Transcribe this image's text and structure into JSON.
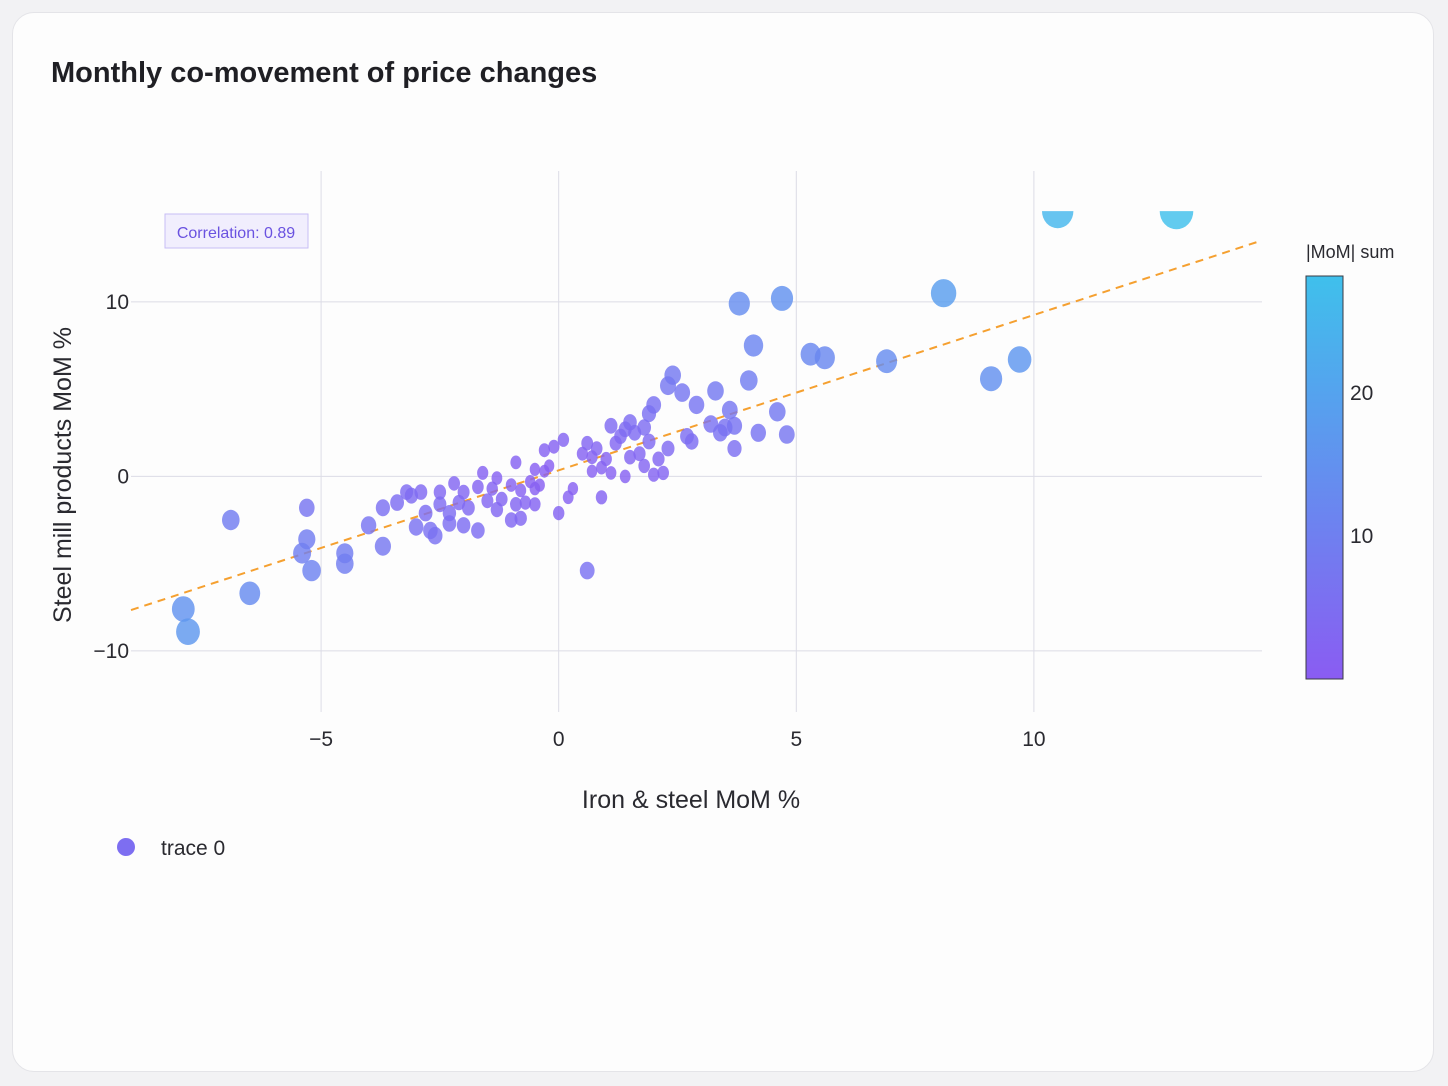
{
  "title": "Monthly co-movement of price changes",
  "colors": {
    "low": "#8a5cf2",
    "high": "#3fc0ec",
    "trend": "#f5a030",
    "grid": "#dcdce6",
    "annotation_bg": "#f1eefd",
    "annotation_border": "#c8bdf5"
  },
  "chart_data": {
    "type": "scatter",
    "title": "Monthly co-movement of price changes",
    "xlabel": "Iron & steel MoM %",
    "ylabel": "Steel mill products MoM %",
    "xlim": [
      -9,
      14.8
    ],
    "ylim": [
      -13.5,
      17.5
    ],
    "x_ticks": [
      {
        "value": -5,
        "label": "−5"
      },
      {
        "value": 0,
        "label": "0"
      },
      {
        "value": 5,
        "label": "5"
      },
      {
        "value": 10,
        "label": "10"
      }
    ],
    "y_ticks": [
      {
        "value": -10,
        "label": "−10"
      },
      {
        "value": 0,
        "label": "0"
      },
      {
        "value": 10,
        "label": "10"
      }
    ],
    "grid": true,
    "series": [
      {
        "name": "trace 0",
        "marker": "bubble; size and color = |x| + |y|",
        "points": [
          [
            -7.9,
            -7.6
          ],
          [
            -7.8,
            -8.9
          ],
          [
            -6.9,
            -2.5
          ],
          [
            -6.5,
            -6.7
          ],
          [
            -5.3,
            -1.8
          ],
          [
            -5.3,
            -3.6
          ],
          [
            -5.4,
            -4.4
          ],
          [
            -5.2,
            -5.4
          ],
          [
            -4.5,
            -4.4
          ],
          [
            -4.5,
            -5.0
          ],
          [
            -4.0,
            -2.8
          ],
          [
            -3.7,
            -4.0
          ],
          [
            -3.7,
            -1.8
          ],
          [
            -3.4,
            -1.5
          ],
          [
            -3.2,
            -0.9
          ],
          [
            -3.0,
            -2.9
          ],
          [
            -3.1,
            -1.1
          ],
          [
            -2.9,
            -0.9
          ],
          [
            -2.8,
            -2.1
          ],
          [
            -2.7,
            -3.1
          ],
          [
            -2.6,
            -3.4
          ],
          [
            -2.5,
            -1.6
          ],
          [
            -2.5,
            -0.9
          ],
          [
            -2.3,
            -2.7
          ],
          [
            -2.3,
            -2.1
          ],
          [
            -2.2,
            -0.4
          ],
          [
            -2.1,
            -1.5
          ],
          [
            -2.0,
            -0.9
          ],
          [
            -2.0,
            -2.8
          ],
          [
            -1.9,
            -1.8
          ],
          [
            -1.7,
            -3.1
          ],
          [
            -1.7,
            -0.6
          ],
          [
            -1.6,
            0.2
          ],
          [
            -1.5,
            -1.4
          ],
          [
            -1.4,
            -0.7
          ],
          [
            -1.3,
            -1.9
          ],
          [
            -1.3,
            -0.1
          ],
          [
            -1.2,
            -1.3
          ],
          [
            -1.0,
            -0.5
          ],
          [
            -1.0,
            -2.5
          ],
          [
            -0.9,
            -1.6
          ],
          [
            -0.8,
            -0.8
          ],
          [
            -0.8,
            -2.4
          ],
          [
            -0.7,
            -1.5
          ],
          [
            -0.6,
            -0.3
          ],
          [
            -0.5,
            -0.7
          ],
          [
            -0.9,
            0.8
          ],
          [
            -0.5,
            0.4
          ],
          [
            -0.5,
            -1.6
          ],
          [
            -0.4,
            -0.5
          ],
          [
            -0.3,
            0.3
          ],
          [
            -0.2,
            0.6
          ],
          [
            -0.3,
            1.5
          ],
          [
            -0.1,
            1.7
          ],
          [
            0.1,
            2.1
          ],
          [
            0.0,
            -2.1
          ],
          [
            0.2,
            -1.2
          ],
          [
            0.3,
            -0.7
          ],
          [
            0.5,
            1.3
          ],
          [
            0.6,
            1.9
          ],
          [
            0.7,
            0.3
          ],
          [
            0.7,
            1.1
          ],
          [
            0.8,
            1.6
          ],
          [
            0.9,
            0.5
          ],
          [
            0.9,
            -1.2
          ],
          [
            1.0,
            1.0
          ],
          [
            1.1,
            2.9
          ],
          [
            1.1,
            0.2
          ],
          [
            1.2,
            1.9
          ],
          [
            1.3,
            2.3
          ],
          [
            1.4,
            2.7
          ],
          [
            1.4,
            0.0
          ],
          [
            1.5,
            1.1
          ],
          [
            1.5,
            3.1
          ],
          [
            1.6,
            2.5
          ],
          [
            1.7,
            1.3
          ],
          [
            1.8,
            0.6
          ],
          [
            1.8,
            2.8
          ],
          [
            1.9,
            3.6
          ],
          [
            1.9,
            2.0
          ],
          [
            2.0,
            4.1
          ],
          [
            2.0,
            0.1
          ],
          [
            2.1,
            1.0
          ],
          [
            2.3,
            5.2
          ],
          [
            2.2,
            0.2
          ],
          [
            2.3,
            1.6
          ],
          [
            2.4,
            5.8
          ],
          [
            2.6,
            4.8
          ],
          [
            2.7,
            2.3
          ],
          [
            2.8,
            2.0
          ],
          [
            2.9,
            4.1
          ],
          [
            3.2,
            3.0
          ],
          [
            3.3,
            4.9
          ],
          [
            3.4,
            2.5
          ],
          [
            3.5,
            2.8
          ],
          [
            3.6,
            3.8
          ],
          [
            3.7,
            2.9
          ],
          [
            3.7,
            1.6
          ],
          [
            3.8,
            9.9
          ],
          [
            4.0,
            5.5
          ],
          [
            4.1,
            7.5
          ],
          [
            4.2,
            2.5
          ],
          [
            4.6,
            3.7
          ],
          [
            4.7,
            10.2
          ],
          [
            4.8,
            2.4
          ],
          [
            5.3,
            7.0
          ],
          [
            5.6,
            6.8
          ],
          [
            6.9,
            6.6
          ],
          [
            8.1,
            10.5
          ],
          [
            9.1,
            5.6
          ],
          [
            9.7,
            6.7
          ],
          [
            10.5,
            15.2
          ],
          [
            13.0,
            15.2
          ],
          [
            0.6,
            -5.4
          ]
        ]
      }
    ],
    "trendline": {
      "slope": 0.89,
      "intercept": 0.35,
      "x_range": [
        -9,
        14.8
      ],
      "style": "dashed"
    },
    "annotation": "Correlation: 0.89",
    "colorbar": {
      "title": "|MoM| sum",
      "ticks": [
        10,
        20
      ],
      "range": [
        0,
        28.2
      ]
    },
    "legend": {
      "placement": "bottom-left",
      "entries": [
        "trace 0"
      ]
    }
  }
}
